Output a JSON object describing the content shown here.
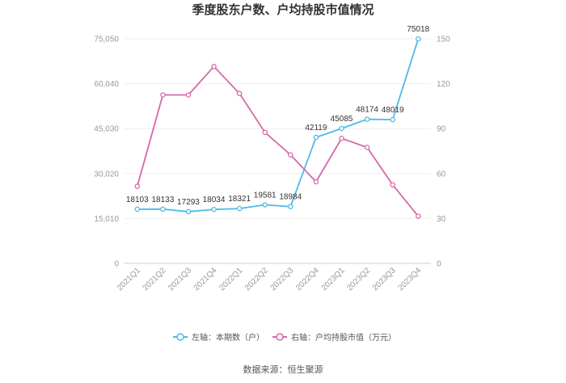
{
  "chart_data": {
    "type": "line",
    "title": "季度股东户数、户均持股市值情况",
    "categories": [
      "2021Q1",
      "2021Q2",
      "2021Q3",
      "2021Q4",
      "2022Q1",
      "2022Q2",
      "2022Q3",
      "2022Q4",
      "2023Q1",
      "2023Q2",
      "2023Q3",
      "2023Q4"
    ],
    "left_axis": {
      "ylim": [
        0,
        75050
      ],
      "ticks": [
        "0",
        "15,010",
        "30,020",
        "45,030",
        "60,040",
        "75,050"
      ]
    },
    "right_axis": {
      "ylim": [
        0,
        150
      ],
      "ticks": [
        "0",
        "30",
        "60",
        "90",
        "120",
        "150"
      ]
    },
    "series": [
      {
        "name": "左轴：本期数（户）",
        "axis": "left",
        "color": "#4dbbe8",
        "values": [
          18103,
          18133,
          17293,
          18034,
          18321,
          19581,
          18984,
          42119,
          45085,
          48174,
          48019,
          75018
        ],
        "labels": [
          "18103",
          "18133",
          "17293",
          "18034",
          "18321",
          "19581",
          "18984",
          "42119",
          "45085",
          "48174",
          "48019",
          "75018"
        ]
      },
      {
        "name": "右轴：户均持股市值（万元）",
        "axis": "right",
        "color": "#d867a8",
        "values": [
          51.5,
          112.5,
          112.5,
          131.5,
          113.5,
          87.5,
          72.5,
          54.5,
          83.5,
          77.5,
          52.5,
          31.5
        ]
      }
    ],
    "grid": "horizontal",
    "legend_position": "bottom",
    "source": "数据来源：恒生聚源"
  }
}
